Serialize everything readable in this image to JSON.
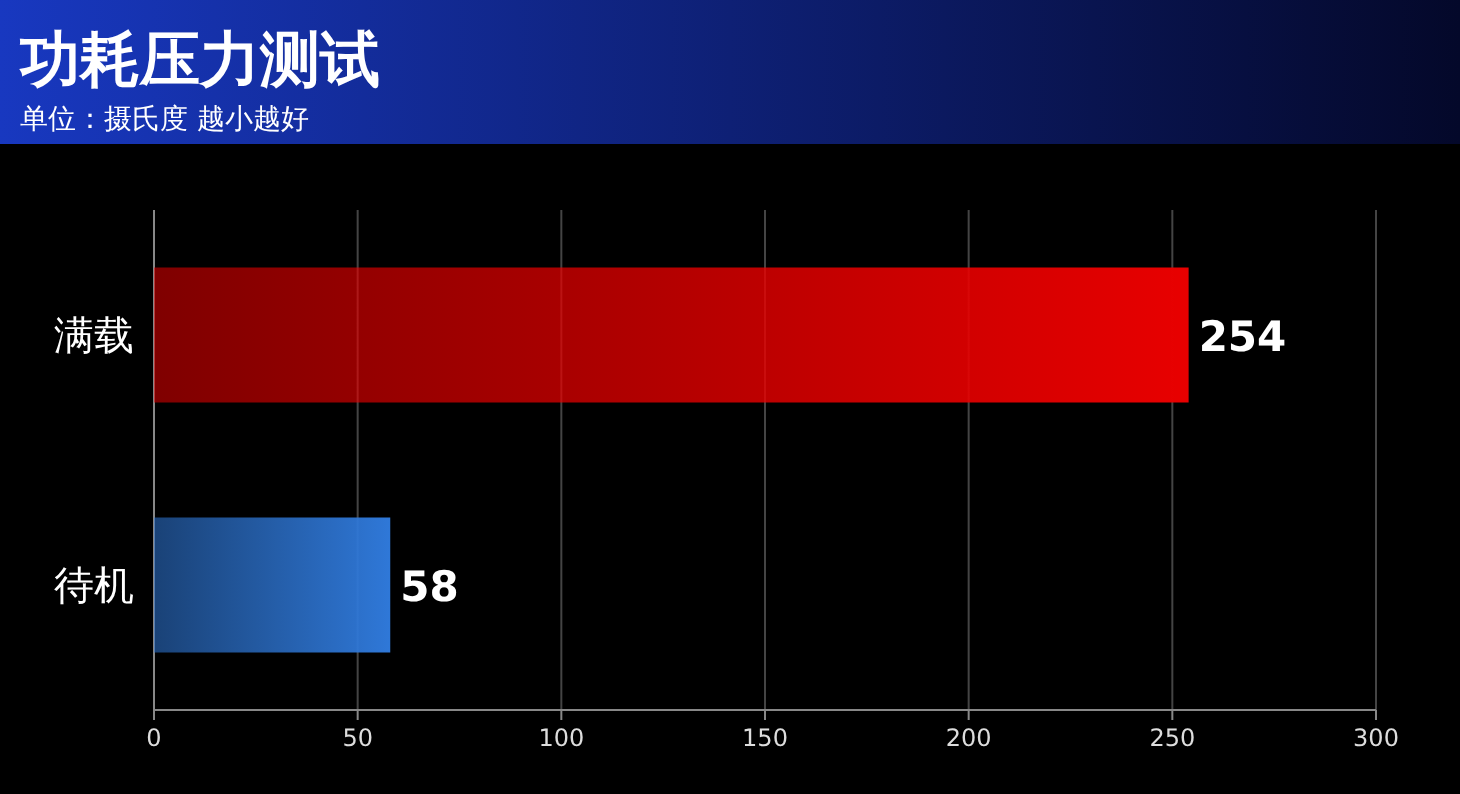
{
  "chart_data": {
    "type": "bar",
    "orientation": "horizontal",
    "title": "功耗压力测试",
    "subtitle": "单位：摄氏度 越小越好",
    "categories": [
      "满载",
      "待机"
    ],
    "values": [
      254,
      58
    ],
    "colors": [
      "#e80000",
      "#2f78d8"
    ],
    "xlim": [
      0,
      300
    ],
    "xticks": [
      0,
      50,
      100,
      150,
      200,
      250,
      300
    ],
    "grid": "x",
    "data_labels": true
  }
}
